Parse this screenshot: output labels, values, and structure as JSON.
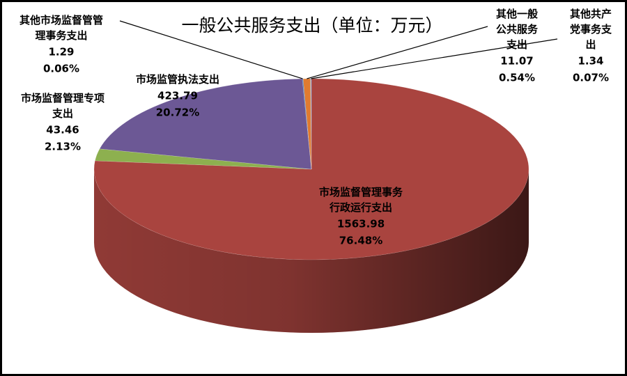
{
  "chart_data": {
    "type": "pie3d",
    "title": "一般公共服务支出（单位：万元）",
    "categories": [
      "市场监督管理事务行政运行支出",
      "市场监督管理专项支出",
      "市场监管执法支出",
      "其他市场监督管管理事务支出",
      "其他一般公共服务支出",
      "其他共产党事务支出"
    ],
    "values": [
      1563.98,
      43.46,
      423.79,
      1.29,
      11.07,
      1.34
    ],
    "percent_labels": [
      "76.48%",
      "2.13%",
      "20.72%",
      "0.06%",
      "0.54%",
      "0.07%"
    ],
    "colors": [
      "#a9443f",
      "#8db04f",
      "#6c5895",
      "#4a7ebb",
      "#e07b30",
      "#8fb4e3"
    ]
  }
}
